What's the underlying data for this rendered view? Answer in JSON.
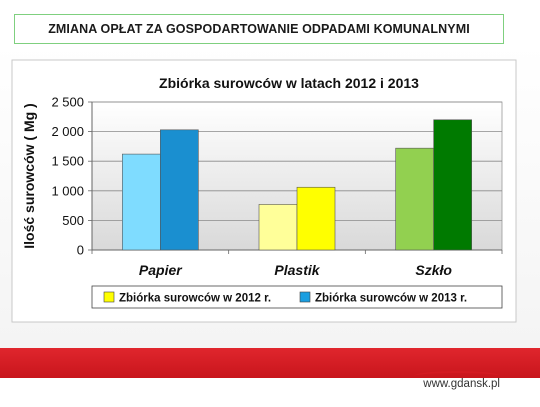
{
  "header": {
    "title": "ZMIANA OPŁAT ZA GOSPODARTOWANIE ODPADAMI KOMUNALNYMI"
  },
  "chart_data": {
    "type": "bar",
    "title": "Zbiórka surowców w latach 2012 i 2013",
    "ylabel": "Ilość surowców ( Mg )",
    "xlabel": "",
    "categories": [
      "Papier",
      "Plastik",
      "Szkło"
    ],
    "ylim": [
      0,
      2500
    ],
    "yticks": [
      0,
      500,
      1000,
      1500,
      2000,
      2500
    ],
    "ytick_labels": [
      "0",
      "500",
      "1 000",
      "1 500",
      "2 000",
      "2 500"
    ],
    "grid": true,
    "legend_position": "bottom",
    "legend": [
      "Zbiórka surowców w 2012 r.",
      "Zbiórka surowców w 2013 r."
    ],
    "legend_colors": [
      "#ffff00",
      "#1a9ee0"
    ],
    "series": [
      {
        "name": "Zbiórka surowców w 2012 r.",
        "values": [
          1620,
          770,
          1720
        ],
        "colors": [
          "#7fdcff",
          "#ffff99",
          "#92d050"
        ]
      },
      {
        "name": "Zbiórka surowców w 2013 r.",
        "values": [
          2030,
          1060,
          2200
        ],
        "colors": [
          "#1a8fd0",
          "#ffff00",
          "#007a00"
        ]
      }
    ]
  },
  "footer": {
    "site": "www.gdansk.pl"
  }
}
